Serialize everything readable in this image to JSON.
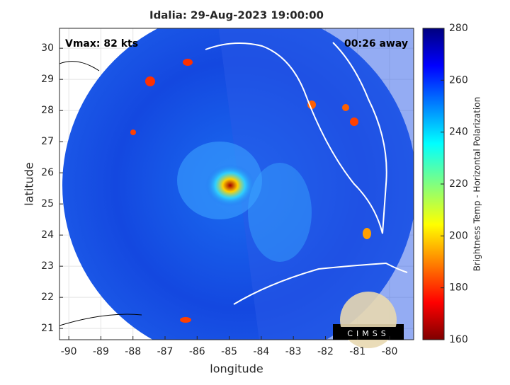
{
  "chart_data": {
    "type": "map",
    "title": "Idalia: 29-Aug-2023 19:00:00",
    "annotations": [
      "Vmax: 82 kts",
      "00:26 away"
    ],
    "xlabel": "longitude",
    "ylabel": "latitude",
    "xlim": [
      -90.29,
      -79.25
    ],
    "ylim": [
      20.64,
      30.64
    ],
    "xticks": [
      -90,
      -89,
      -88,
      -87,
      -86,
      -85,
      -84,
      -83,
      -82,
      -81,
      -80
    ],
    "yticks": [
      21,
      22,
      23,
      24,
      25,
      26,
      27,
      28,
      29,
      30
    ],
    "grid": true,
    "colorbar": {
      "label": "Brightness Temp - Horizontal Polarization",
      "lim": [
        160,
        280
      ],
      "ticks": [
        160,
        180,
        200,
        220,
        240,
        260,
        280
      ]
    },
    "logo": "CIMSS"
  }
}
